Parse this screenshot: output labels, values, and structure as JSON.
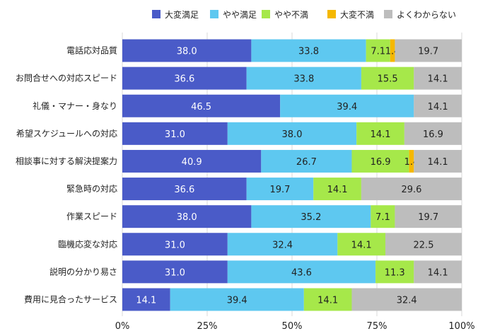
{
  "chart_data": {
    "type": "bar",
    "orientation": "horizontal",
    "stacked": true,
    "percent": true,
    "categories": [
      "電話応対品質",
      "お問合せへの対応スピード",
      "礼儀・マナー・身なり",
      "希望スケジュールへの対応",
      "相談事に対する解決提案力",
      "緊急時の対応",
      "作業スピード",
      "臨機応変な対応",
      "説明の分かり易さ",
      "費用に見合ったサービス"
    ],
    "series": [
      {
        "name": "大変満足",
        "color": "#4a5bc8",
        "text_color": "#ffffff",
        "values": [
          38.0,
          36.6,
          46.5,
          31.0,
          40.9,
          36.6,
          38.0,
          31.0,
          31.0,
          14.1
        ]
      },
      {
        "name": "やや満足",
        "color": "#5ec8f0",
        "text_color": "#222222",
        "values": [
          33.8,
          33.8,
          39.4,
          38.0,
          26.7,
          19.7,
          35.2,
          32.4,
          43.6,
          39.4
        ]
      },
      {
        "name": "やや不満",
        "color": "#a6e84a",
        "text_color": "#222222",
        "values": [
          7.1,
          15.5,
          0,
          14.1,
          16.9,
          14.1,
          7.1,
          14.1,
          11.3,
          14.1
        ]
      },
      {
        "name": "大変不満",
        "color": "#f5b800",
        "text_color": "#222222",
        "values": [
          1.4,
          0,
          0,
          0,
          1.4,
          0,
          0,
          0,
          0,
          0
        ]
      },
      {
        "name": "よくわからない",
        "color": "#bdbdbd",
        "text_color": "#222222",
        "values": [
          19.7,
          14.1,
          14.1,
          16.9,
          14.1,
          29.6,
          19.7,
          22.5,
          14.1,
          32.4
        ]
      }
    ],
    "xlim": [
      0,
      100
    ],
    "xticks": [
      "0%",
      "25%",
      "50%",
      "75%",
      "100%"
    ],
    "legend_position": "top",
    "grid": "vertical"
  }
}
